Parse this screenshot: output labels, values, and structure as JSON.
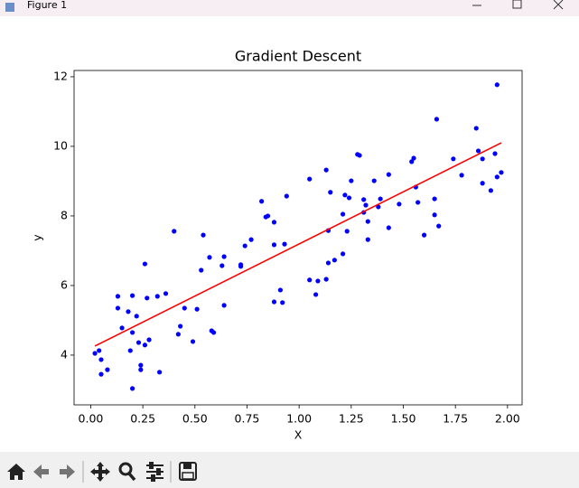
{
  "window": {
    "title": "Figure 1"
  },
  "chart_data": {
    "type": "scatter",
    "title": "Gradient Descent",
    "x_label": "X",
    "y_label": "y",
    "xlim": [
      -0.08,
      2.07
    ],
    "ylim": [
      2.57,
      12.18
    ],
    "xticks": [
      {
        "value": 0,
        "label": "0.00"
      },
      {
        "value": 0.25,
        "label": "0.25"
      },
      {
        "value": 0.5,
        "label": "0.50"
      },
      {
        "value": 0.75,
        "label": "0.75"
      },
      {
        "value": 1,
        "label": "1.00"
      },
      {
        "value": 1.25,
        "label": "1.25"
      },
      {
        "value": 1.5,
        "label": "1.50"
      },
      {
        "value": 1.75,
        "label": "1.75"
      },
      {
        "value": 2,
        "label": "2.00"
      }
    ],
    "yticks": [
      4,
      6,
      8,
      10,
      12
    ],
    "series": [
      {
        "type": "scatter",
        "color": "#0000ff",
        "x": [
          0.02,
          0.04,
          0.05,
          0.05,
          0.08,
          0.13,
          0.13,
          0.15,
          0.18,
          0.19,
          0.2,
          0.2,
          0.22,
          0.23,
          0.24,
          0.24,
          0.26,
          0.26,
          0.27,
          0.28,
          0.2,
          0.32,
          0.33,
          0.36,
          0.4,
          0.42,
          0.43,
          0.45,
          0.49,
          0.51,
          0.53,
          0.54,
          0.57,
          0.58,
          0.59,
          0.63,
          0.64,
          0.64,
          0.72,
          0.72,
          0.74,
          0.77,
          0.82,
          0.84,
          0.85,
          0.88,
          0.88,
          0.88,
          0.91,
          0.92,
          0.93,
          0.94,
          1.05,
          1.05,
          1.08,
          1.09,
          1.13,
          1.13,
          1.14,
          1.14,
          1.15,
          1.17,
          1.21,
          1.21,
          1.22,
          1.23,
          1.24,
          1.25,
          1.28,
          1.29,
          1.31,
          1.31,
          1.32,
          1.33,
          1.33,
          1.36,
          1.38,
          1.39,
          1.43,
          1.43,
          1.48,
          1.54,
          1.55,
          1.56,
          1.57,
          1.6,
          1.65,
          1.65,
          1.66,
          1.67,
          1.74,
          1.78,
          1.85,
          1.86,
          1.88,
          1.88,
          1.92,
          1.94,
          1.95,
          1.95,
          1.97
        ],
        "values": [
          4.05,
          4.13,
          3.87,
          3.45,
          3.58,
          5.69,
          5.35,
          4.78,
          5.25,
          4.13,
          5.71,
          4.65,
          5.12,
          4.36,
          3.71,
          3.58,
          4.29,
          6.62,
          5.64,
          4.44,
          3.04,
          5.69,
          3.51,
          5.77,
          7.56,
          4.6,
          4.83,
          5.35,
          4.39,
          5.32,
          6.44,
          7.45,
          6.81,
          4.7,
          4.65,
          6.57,
          6.83,
          5.43,
          6.6,
          6.55,
          7.14,
          7.32,
          8.42,
          7.97,
          8.0,
          7.82,
          7.17,
          5.53,
          5.87,
          5.51,
          7.19,
          8.57,
          9.06,
          6.16,
          5.74,
          6.13,
          6.18,
          9.32,
          7.58,
          6.65,
          8.68,
          6.73,
          6.91,
          8.05,
          8.6,
          7.56,
          8.52,
          9.01,
          9.77,
          9.74,
          8.47,
          8.1,
          8.31,
          7.84,
          7.32,
          9.01,
          8.26,
          8.49,
          9.19,
          7.66,
          8.34,
          9.56,
          9.66,
          8.83,
          8.39,
          7.45,
          8.49,
          8.03,
          10.78,
          7.71,
          9.64,
          9.17,
          10.52,
          9.87,
          9.64,
          8.94,
          8.73,
          9.79,
          9.12,
          11.77,
          9.25
        ]
      },
      {
        "type": "line",
        "color": "#ff0000",
        "x": [
          0.02,
          1.97
        ],
        "values": [
          4.26,
          10.1
        ]
      }
    ]
  }
}
